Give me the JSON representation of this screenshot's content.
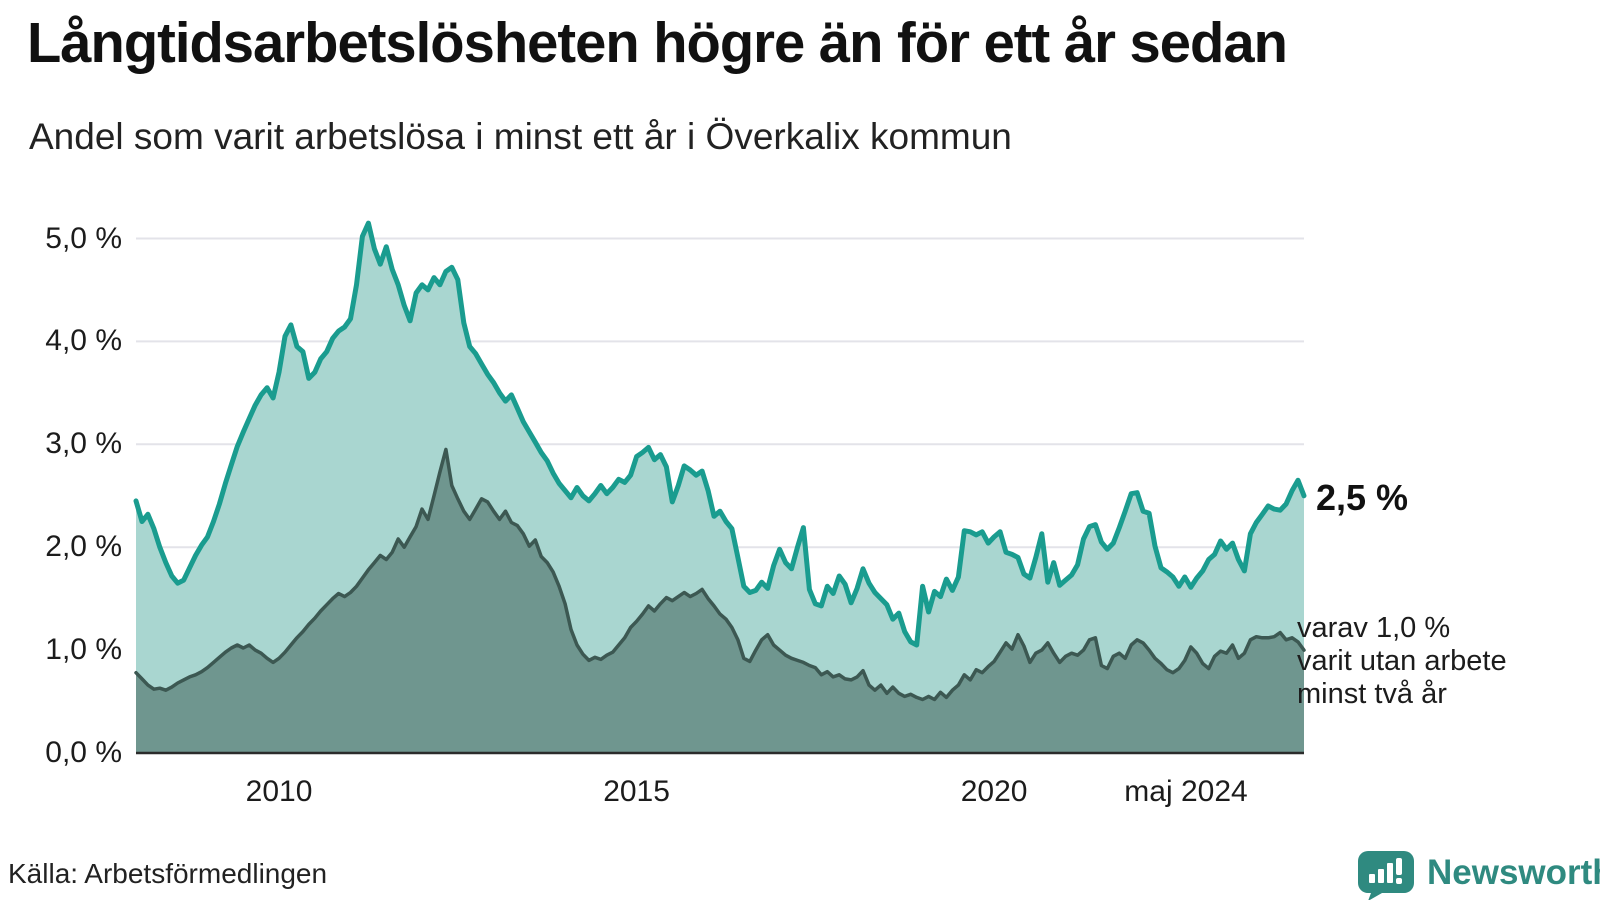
{
  "header": {
    "title": "Långtidsarbetslösheten högre än för ett år sedan",
    "subtitle": "Andel som varit arbetslösa i minst ett år i Överkalix kommun"
  },
  "footer": {
    "source": "Källa: Arbetsförmedlingen",
    "logo_text": "Newsworthy"
  },
  "colors": {
    "total_line": "#1a9c8f",
    "total_fill": "#a9d6d0",
    "two_year_line": "#3c5852",
    "two_year_fill": "#6f968f",
    "gridline": "#e3e3e9",
    "axis": "#2b2b2b",
    "logo": "#2f8a80"
  },
  "chart_data": {
    "type": "area",
    "title": "Långtidsarbetslösheten högre än för ett år sedan",
    "subtitle": "Andel som varit arbetslösa i minst ett år i Överkalix kommun",
    "unit": "%",
    "x_start": "2008-01",
    "x_end": "2024-05",
    "ylim": [
      0,
      5.3
    ],
    "grid": true,
    "y_ticks": [
      "0,0 %",
      "1,0 %",
      "2,0 %",
      "3,0 %",
      "4,0 %",
      "5,0 %"
    ],
    "x_ticks": [
      {
        "label": "2010",
        "month_index": 24
      },
      {
        "label": "2015",
        "month_index": 84
      },
      {
        "label": "2020",
        "month_index": 144
      },
      {
        "label": "maj 2024",
        "month_index": 196
      }
    ],
    "end_labels": {
      "total": "2,5 %",
      "two_year_lines": [
        "varav 1,0 %",
        "varit utan arbete",
        "minst två år"
      ]
    },
    "series": [
      {
        "name": "Andel som varit arbetslösa i minst ett år",
        "color": "#1a9c8f",
        "fill": "#a9d6d0",
        "values": [
          2.45,
          2.25,
          2.32,
          2.18,
          2.0,
          1.85,
          1.72,
          1.65,
          1.68,
          1.8,
          1.92,
          2.02,
          2.1,
          2.25,
          2.42,
          2.62,
          2.8,
          2.98,
          3.12,
          3.25,
          3.38,
          3.48,
          3.55,
          3.45,
          3.7,
          4.05,
          4.16,
          3.95,
          3.9,
          3.64,
          3.7,
          3.83,
          3.9,
          4.03,
          4.1,
          4.14,
          4.22,
          4.55,
          5.02,
          5.15,
          4.9,
          4.75,
          4.92,
          4.7,
          4.55,
          4.35,
          4.2,
          4.47,
          4.55,
          4.5,
          4.62,
          4.55,
          4.68,
          4.72,
          4.6,
          4.18,
          3.95,
          3.88,
          3.78,
          3.68,
          3.6,
          3.5,
          3.42,
          3.48,
          3.35,
          3.22,
          3.12,
          3.02,
          2.92,
          2.84,
          2.72,
          2.62,
          2.55,
          2.48,
          2.58,
          2.5,
          2.45,
          2.52,
          2.6,
          2.52,
          2.58,
          2.66,
          2.63,
          2.7,
          2.88,
          2.92,
          2.97,
          2.85,
          2.9,
          2.78,
          2.44,
          2.6,
          2.79,
          2.75,
          2.7,
          2.74,
          2.55,
          2.3,
          2.35,
          2.25,
          2.18,
          1.9,
          1.62,
          1.56,
          1.58,
          1.66,
          1.6,
          1.82,
          1.98,
          1.85,
          1.79,
          2.0,
          2.19,
          1.59,
          1.45,
          1.43,
          1.62,
          1.55,
          1.72,
          1.64,
          1.46,
          1.6,
          1.79,
          1.65,
          1.56,
          1.5,
          1.44,
          1.3,
          1.36,
          1.18,
          1.08,
          1.05,
          1.62,
          1.37,
          1.57,
          1.52,
          1.69,
          1.58,
          1.71,
          2.16,
          2.15,
          2.12,
          2.15,
          2.04,
          2.1,
          2.15,
          1.95,
          1.93,
          1.9,
          1.74,
          1.7,
          1.9,
          2.13,
          1.66,
          1.85,
          1.63,
          1.68,
          1.73,
          1.83,
          2.08,
          2.2,
          2.22,
          2.05,
          1.98,
          2.04,
          2.19,
          2.35,
          2.52,
          2.53,
          2.35,
          2.33,
          2.01,
          1.8,
          1.76,
          1.71,
          1.62,
          1.71,
          1.61,
          1.7,
          1.77,
          1.88,
          1.93,
          2.06,
          1.98,
          2.04,
          1.88,
          1.77,
          2.13,
          2.24,
          2.32,
          2.4,
          2.37,
          2.36,
          2.42,
          2.55,
          2.65,
          2.5
        ]
      },
      {
        "name": "varav utan arbete minst två år",
        "color": "#3c5852",
        "fill": "#6f968f",
        "values": [
          0.78,
          0.72,
          0.66,
          0.62,
          0.63,
          0.61,
          0.64,
          0.68,
          0.71,
          0.74,
          0.76,
          0.79,
          0.83,
          0.88,
          0.93,
          0.98,
          1.02,
          1.05,
          1.02,
          1.05,
          1.0,
          0.97,
          0.92,
          0.88,
          0.92,
          0.98,
          1.05,
          1.12,
          1.18,
          1.25,
          1.31,
          1.38,
          1.44,
          1.5,
          1.55,
          1.52,
          1.56,
          1.62,
          1.7,
          1.78,
          1.85,
          1.92,
          1.88,
          1.95,
          2.08,
          2.0,
          2.1,
          2.2,
          2.37,
          2.27,
          2.5,
          2.73,
          2.95,
          2.6,
          2.47,
          2.35,
          2.27,
          2.37,
          2.47,
          2.44,
          2.35,
          2.27,
          2.35,
          2.24,
          2.21,
          2.13,
          2.01,
          2.07,
          1.91,
          1.85,
          1.76,
          1.62,
          1.45,
          1.2,
          1.05,
          0.96,
          0.9,
          0.93,
          0.91,
          0.95,
          0.98,
          1.05,
          1.12,
          1.22,
          1.28,
          1.35,
          1.43,
          1.38,
          1.45,
          1.51,
          1.48,
          1.52,
          1.56,
          1.52,
          1.55,
          1.59,
          1.5,
          1.43,
          1.35,
          1.3,
          1.22,
          1.1,
          0.92,
          0.89,
          1.0,
          1.1,
          1.15,
          1.05,
          1.0,
          0.95,
          0.92,
          0.9,
          0.88,
          0.85,
          0.83,
          0.76,
          0.79,
          0.74,
          0.76,
          0.72,
          0.71,
          0.74,
          0.8,
          0.66,
          0.61,
          0.66,
          0.58,
          0.64,
          0.58,
          0.55,
          0.57,
          0.54,
          0.52,
          0.55,
          0.52,
          0.59,
          0.54,
          0.61,
          0.66,
          0.76,
          0.71,
          0.81,
          0.78,
          0.84,
          0.89,
          0.98,
          1.07,
          1.01,
          1.15,
          1.04,
          0.88,
          0.97,
          1.0,
          1.07,
          0.97,
          0.88,
          0.94,
          0.97,
          0.95,
          1.0,
          1.1,
          1.12,
          0.85,
          0.82,
          0.94,
          0.97,
          0.92,
          1.05,
          1.1,
          1.07,
          1.0,
          0.92,
          0.87,
          0.81,
          0.78,
          0.82,
          0.9,
          1.03,
          0.97,
          0.87,
          0.82,
          0.94,
          0.99,
          0.97,
          1.05,
          0.92,
          0.97,
          1.1,
          1.13,
          1.12,
          1.12,
          1.13,
          1.17,
          1.1,
          1.12,
          1.08,
          1.0
        ]
      }
    ]
  }
}
